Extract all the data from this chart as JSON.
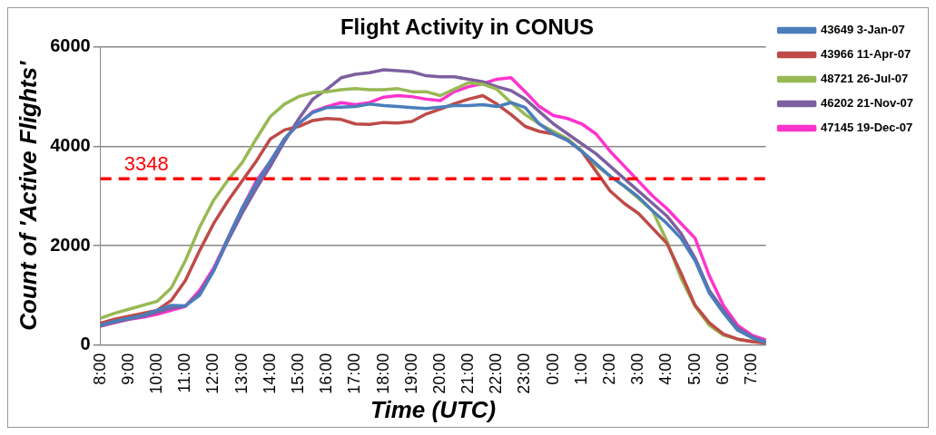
{
  "chart_data": {
    "type": "line",
    "title": "Flight Activity in CONUS",
    "xlabel": "Time (UTC)",
    "ylabel": "Count of 'Active Flights'",
    "categories": [
      "8:00",
      null,
      "9:00",
      null,
      "10:00",
      null,
      "11:00",
      null,
      "12:00",
      null,
      "13:00",
      null,
      "14:00",
      null,
      "15:00",
      null,
      "16:00",
      null,
      "17:00",
      null,
      "18:00",
      null,
      "19:00",
      null,
      "20:00",
      null,
      "21:00",
      null,
      "22:00",
      null,
      "23:00",
      null,
      "0:00",
      null,
      "1:00",
      null,
      "2:00",
      null,
      "3:00",
      null,
      "4:00",
      null,
      "5:00",
      null,
      "6:00",
      null,
      "7:00",
      null
    ],
    "ylim": [
      0,
      6000
    ],
    "yticks": [
      0,
      2000,
      4000,
      6000
    ],
    "grid": "y",
    "legend": "top right",
    "marker": "none",
    "line_style": "solid",
    "ref_lines": [
      {
        "axis": "y",
        "value": 3348,
        "label": "3348",
        "color": "#ff0000",
        "line_style": "dashed"
      }
    ],
    "series": [
      {
        "name": "43649 3-Jan-07",
        "color": "#4a7ebb",
        "values": [
          400,
          480,
          540,
          600,
          700,
          800,
          790,
          1000,
          1500,
          2150,
          2750,
          3250,
          3700,
          4150,
          4460,
          4680,
          4780,
          4790,
          4800,
          4850,
          4820,
          4800,
          4780,
          4760,
          4790,
          4820,
          4820,
          4840,
          4800,
          4880,
          4780,
          4450,
          4250,
          4120,
          3900,
          3650,
          3400,
          3200,
          2980,
          2700,
          2450,
          2150,
          1700,
          1050,
          650,
          300,
          150,
          50
        ]
      },
      {
        "name": "43966 11-Apr-07",
        "color": "#be4b48",
        "values": [
          440,
          520,
          580,
          640,
          700,
          900,
          1300,
          1900,
          2450,
          2900,
          3300,
          3700,
          4150,
          4330,
          4400,
          4520,
          4560,
          4540,
          4450,
          4440,
          4480,
          4470,
          4500,
          4650,
          4750,
          4860,
          4950,
          5020,
          4850,
          4640,
          4400,
          4300,
          4250,
          4120,
          3900,
          3500,
          3100,
          2850,
          2650,
          2350,
          2050,
          1450,
          800,
          450,
          220,
          120,
          70,
          40
        ]
      },
      {
        "name": "48721 26-Jul-07",
        "color": "#98b954",
        "values": [
          540,
          640,
          720,
          800,
          880,
          1150,
          1700,
          2370,
          2920,
          3320,
          3670,
          4150,
          4600,
          4850,
          5000,
          5080,
          5100,
          5140,
          5160,
          5140,
          5140,
          5160,
          5100,
          5100,
          5020,
          5150,
          5280,
          5250,
          5150,
          4880,
          4640,
          4450,
          4300,
          4150,
          3900,
          3620,
          3400,
          3200,
          2950,
          2700,
          2100,
          1350,
          780,
          400,
          200,
          120,
          80,
          40
        ]
      },
      {
        "name": "46202 21-Nov-07",
        "color": "#7d60a0",
        "values": [
          380,
          460,
          520,
          580,
          660,
          740,
          790,
          1050,
          1500,
          2100,
          2650,
          3150,
          3600,
          4100,
          4550,
          4950,
          5150,
          5380,
          5450,
          5480,
          5540,
          5520,
          5500,
          5420,
          5400,
          5400,
          5350,
          5300,
          5200,
          5120,
          4950,
          4700,
          4450,
          4250,
          4050,
          3850,
          3600,
          3350,
          3100,
          2850,
          2600,
          2250,
          1750,
          1100,
          700,
          350,
          170,
          60
        ]
      },
      {
        "name": "47145 19-Dec-07",
        "color": "#ff33cc",
        "values": [
          380,
          450,
          520,
          560,
          620,
          700,
          780,
          1100,
          1550,
          2150,
          2750,
          3300,
          3700,
          4150,
          4450,
          4700,
          4800,
          4880,
          4840,
          4880,
          4990,
          5020,
          5000,
          4950,
          4920,
          5100,
          5200,
          5260,
          5350,
          5380,
          5100,
          4800,
          4620,
          4560,
          4450,
          4250,
          3900,
          3600,
          3300,
          3000,
          2750,
          2450,
          2150,
          1400,
          800,
          400,
          200,
          100
        ]
      }
    ]
  }
}
